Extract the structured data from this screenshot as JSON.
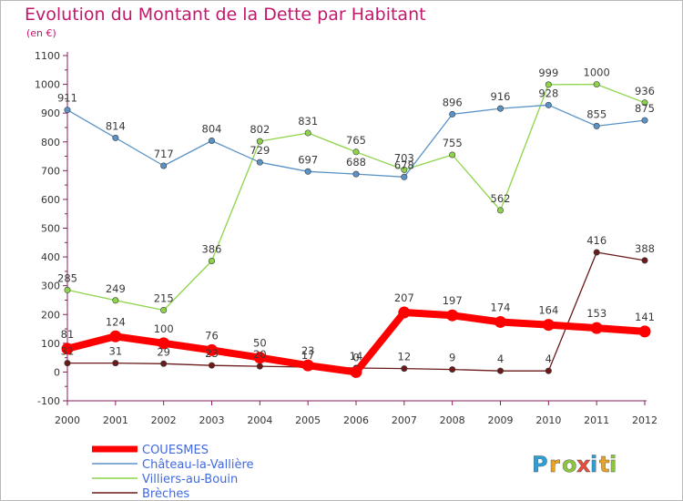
{
  "chart_data": {
    "type": "line",
    "title": "Evolution du Montant de la Dette par Habitant",
    "subtitle": "(en €)",
    "xlabel": "",
    "ylabel": "",
    "x": [
      "2000",
      "2001",
      "2002",
      "2003",
      "2004",
      "2005",
      "2006",
      "2007",
      "2008",
      "2009",
      "2010",
      "2011",
      "2012"
    ],
    "ylim": [
      -100,
      1100
    ],
    "yticks": [
      "-100",
      "0",
      "100",
      "200",
      "300",
      "400",
      "500",
      "600",
      "700",
      "800",
      "900",
      "1000",
      "1100"
    ],
    "grid": false,
    "legend_position": "bottom-left",
    "series": [
      {
        "name": "Brèches",
        "color": "#6b1a1a",
        "values": [
          31,
          31,
          29,
          23,
          20,
          17,
          14,
          12,
          9,
          4,
          4,
          416,
          388
        ],
        "labels": [
          "31",
          "31",
          "29",
          "23",
          "20",
          "17",
          "14",
          "12",
          "9",
          "4",
          "4",
          "416",
          "388"
        ]
      },
      {
        "name": "Villiers-au-Bouin",
        "color": "#8ed44a",
        "values": [
          285,
          249,
          215,
          386,
          802,
          831,
          765,
          703,
          755,
          562,
          999,
          1000,
          936
        ],
        "labels": [
          "285",
          "249",
          "215",
          "386",
          "802",
          "831",
          "765",
          "703",
          "755",
          "562",
          "999",
          "1000",
          "936"
        ]
      },
      {
        "name": "Château-la-Vallière",
        "color": "#5b93c7",
        "values": [
          911,
          814,
          717,
          804,
          729,
          697,
          688,
          678,
          896,
          916,
          928,
          855,
          875
        ],
        "labels": [
          "911",
          "814",
          "717",
          "804",
          "729",
          "697",
          "688",
          "678",
          "896",
          "916",
          "928",
          "855",
          "875"
        ]
      },
      {
        "name": "COUESMES",
        "color": "#ff0000",
        "values": [
          81,
          124,
          100,
          76,
          50,
          23,
          0,
          207,
          197,
          174,
          164,
          153,
          141
        ],
        "labels": [
          "81",
          "124",
          "100",
          "76",
          "50",
          "23",
          "0",
          "207",
          "197",
          "174",
          "164",
          "153",
          "141"
        ]
      }
    ]
  },
  "brand": {
    "letters": [
      "P",
      "r",
      "o",
      "x",
      "i",
      "t",
      "i"
    ],
    "colors": [
      "#2c9fd9",
      "#e8a321",
      "#8cc63f",
      "#e84c3d",
      "#2c9fd9",
      "#e8a321",
      "#8cc63f"
    ]
  }
}
